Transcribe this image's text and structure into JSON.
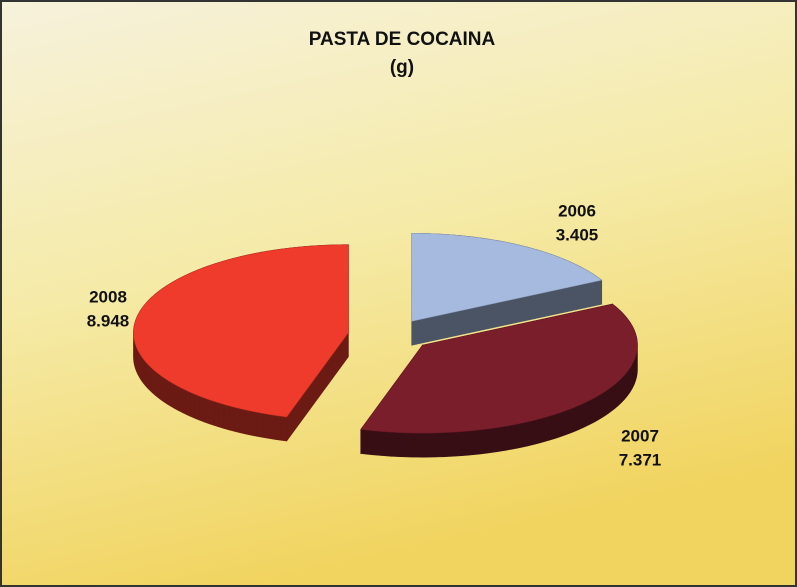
{
  "chart_data": {
    "type": "pie",
    "title": "PASTA DE COCAINA",
    "subtitle": "(g)",
    "categories": [
      "2006",
      "2007",
      "2008"
    ],
    "values": [
      3405,
      7371,
      8948
    ],
    "value_labels": [
      "3.405",
      "7.371",
      "8.948"
    ],
    "colors": [
      "#a6badf",
      "#7b1e2c",
      "#ee3b2b"
    ],
    "legend": false
  }
}
